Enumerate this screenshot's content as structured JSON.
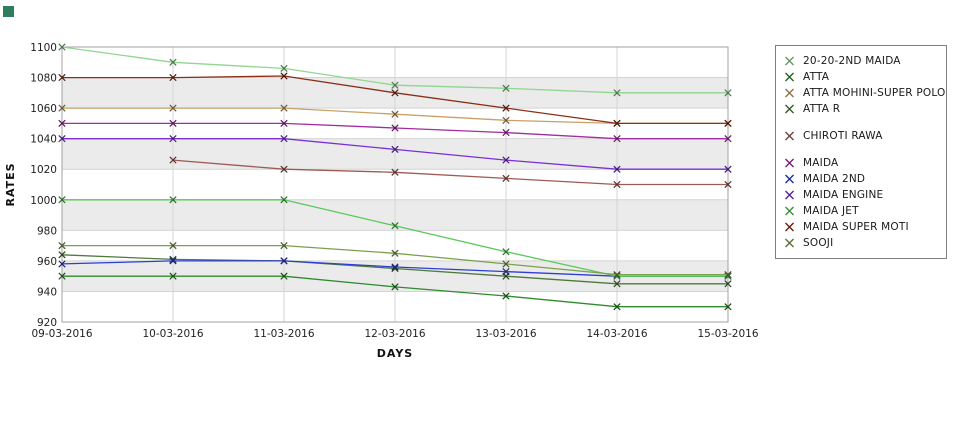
{
  "page": {
    "corner_marker_color": "#2E7D5E",
    "background": "#ffffff"
  },
  "chart_data": {
    "type": "line",
    "title": "",
    "xlabel": "DAYS",
    "ylabel": "RATES",
    "x_categories": [
      "09-03-2016",
      "10-03-2016",
      "11-03-2016",
      "12-03-2016",
      "13-03-2016",
      "14-03-2016",
      "15-03-2016"
    ],
    "ylim": [
      920,
      1100
    ],
    "ytick_step": 20,
    "grid": true,
    "legend_position": "right",
    "band_colors": [
      "#ffffff",
      "#ebebeb"
    ],
    "grid_color": "#d4d4d4",
    "border_color": "#a0a0a0",
    "tick_label_color": "#222222",
    "axis_title_color": "#111111",
    "series": [
      {
        "name": "20-20-2ND MAIDA",
        "color": "#90D690",
        "gap_before": false,
        "values": [
          1100,
          1090,
          1086,
          1075,
          1073,
          1070,
          1070
        ]
      },
      {
        "name": "ATTA",
        "color": "#2E8B2E",
        "gap_before": false,
        "values": [
          950,
          950,
          950,
          943,
          937,
          930,
          930
        ]
      },
      {
        "name": "ATTA MOHINI-SUPER POLO",
        "color": "#C8A165",
        "gap_before": false,
        "values": [
          1060,
          1060,
          1060,
          1056,
          1052,
          1050,
          1050
        ]
      },
      {
        "name": "ATTA R",
        "color": "#4E7A3C",
        "gap_before": false,
        "values": [
          964,
          961,
          960,
          955,
          950,
          945,
          945
        ]
      },
      {
        "name": "CHIROTI RAWA",
        "color": "#9E5A55",
        "gap_before": true,
        "values": [
          null,
          1026,
          1020,
          1018,
          1014,
          1010,
          1010
        ]
      },
      {
        "name": "MAIDA",
        "color": "#A12CA1",
        "gap_before": true,
        "values": [
          1050,
          1050,
          1050,
          1047,
          1044,
          1040,
          1040
        ]
      },
      {
        "name": "MAIDA 2ND",
        "color": "#2D3FD3",
        "gap_before": false,
        "values": [
          958,
          960,
          960,
          956,
          953,
          950,
          950
        ]
      },
      {
        "name": "MAIDA ENGINE",
        "color": "#7B2FD6",
        "gap_before": false,
        "values": [
          1040,
          1040,
          1040,
          1033,
          1026,
          1020,
          1020
        ]
      },
      {
        "name": "MAIDA JET",
        "color": "#57C957",
        "gap_before": false,
        "values": [
          1000,
          1000,
          1000,
          983,
          966,
          950,
          950
        ]
      },
      {
        "name": "MAIDA SUPER MOTI",
        "color": "#8B2E16",
        "gap_before": false,
        "values": [
          1080,
          1080,
          1081,
          1070,
          1060,
          1050,
          1050
        ]
      },
      {
        "name": "SOOJI",
        "color": "#7CA04A",
        "gap_before": false,
        "values": [
          970,
          970,
          970,
          965,
          958,
          951,
          951
        ]
      }
    ]
  }
}
